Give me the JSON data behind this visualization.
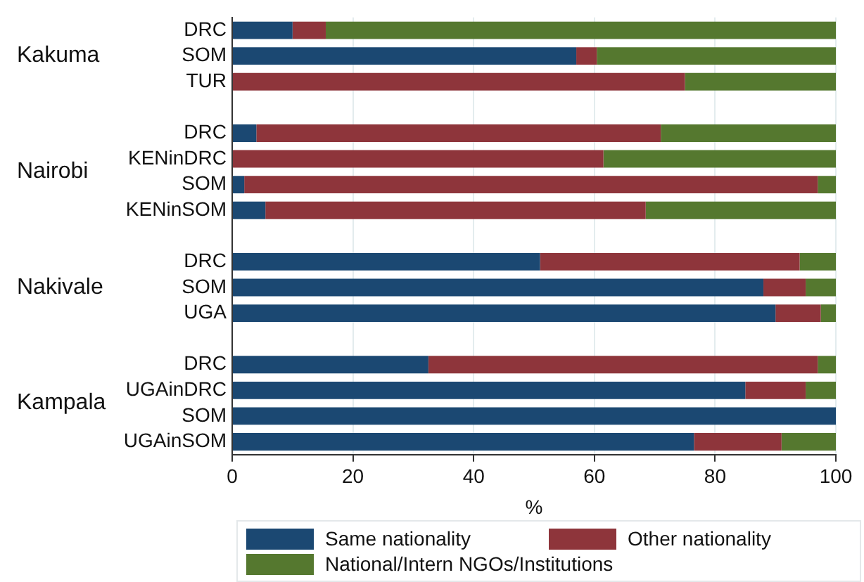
{
  "chart_data": {
    "type": "bar",
    "orientation": "horizontal",
    "stacked": true,
    "xlabel": "%",
    "categories": [
      "DRC",
      "SOM",
      "TUR",
      null,
      "DRC",
      "KENinDRC",
      "SOM",
      "KENinSOM",
      null,
      "DRC",
      "SOM",
      "UGA",
      null,
      "DRC",
      "UGAinDRC",
      "SOM",
      "UGAinSOM"
    ],
    "series": [
      {
        "name": "Same nationality",
        "color": "#1b4872",
        "values": [
          10,
          57,
          0,
          null,
          4,
          0,
          2,
          5.5,
          null,
          51,
          88,
          90,
          null,
          32.5,
          85,
          100,
          76.5
        ]
      },
      {
        "name": "Other nationality",
        "color": "#8e353b",
        "values": [
          5.5,
          3.4,
          75,
          null,
          67,
          61.5,
          95,
          63,
          null,
          43,
          7,
          7.5,
          null,
          64.5,
          10,
          0,
          14.5
        ]
      },
      {
        "name": "National/Intern NGOs/Institutions",
        "color": "#55782f",
        "values": [
          84.5,
          39.6,
          25,
          null,
          29,
          38.5,
          3,
          31.5,
          null,
          6,
          5,
          2.5,
          null,
          3,
          5,
          0,
          9
        ]
      }
    ],
    "xlim": [
      0,
      100
    ],
    "xticks": [
      0,
      20,
      40,
      60,
      80,
      100
    ],
    "grid": "x",
    "legend": "bottom",
    "annotations": [
      "Kakuma",
      "Nairobi",
      "Nakivale",
      "Kampala"
    ]
  }
}
